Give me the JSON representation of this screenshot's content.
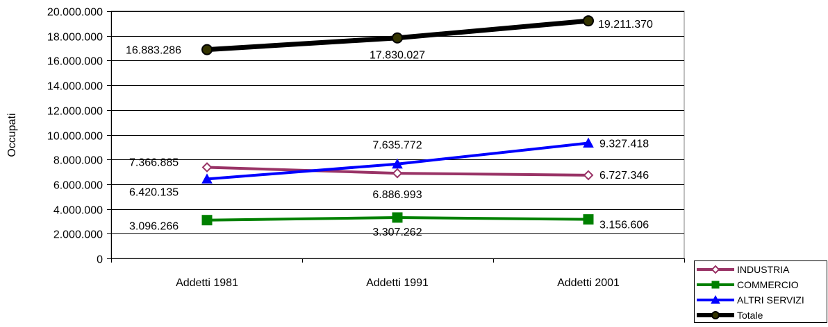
{
  "chart_data": {
    "type": "line",
    "title": "",
    "xlabel": "",
    "ylabel": "Occupati",
    "categories": [
      "Addetti 1981",
      "Addetti 1991",
      "Addetti 2001"
    ],
    "ylim": [
      0,
      20000000
    ],
    "yticks": [
      0,
      2000000,
      4000000,
      6000000,
      8000000,
      10000000,
      12000000,
      14000000,
      16000000,
      18000000,
      20000000
    ],
    "ytick_labels": [
      "0",
      "2.000.000",
      "4.000.000",
      "6.000.000",
      "8.000.000",
      "10.000.000",
      "12.000.000",
      "14.000.000",
      "16.000.000",
      "18.000.000",
      "20.000.000"
    ],
    "grid": true,
    "legend_position": "bottom-right",
    "series": [
      {
        "name": "INDUSTRIA",
        "values": [
          7366885,
          6886993,
          6727346
        ],
        "labels": [
          "7.366.885",
          "6.886.993",
          "6.727.346"
        ],
        "color": "#993366",
        "marker": "diamond-open"
      },
      {
        "name": "COMMERCIO",
        "values": [
          3096266,
          3307262,
          3156606
        ],
        "labels": [
          "3.096.266",
          "3.307.262",
          "3.156.606"
        ],
        "color": "#008000",
        "marker": "square"
      },
      {
        "name": "ALTRI SERVIZI",
        "values": [
          6420135,
          7635772,
          9327418
        ],
        "labels": [
          "6.420.135",
          "7.635.772",
          "9.327.418"
        ],
        "color": "#0000FF",
        "marker": "triangle"
      },
      {
        "name": "Totale",
        "values": [
          16883286,
          17830027,
          19211370
        ],
        "labels": [
          "16.883.286",
          "17.830.027",
          "19.211.370"
        ],
        "color": "#000000",
        "marker": "circle"
      }
    ]
  }
}
